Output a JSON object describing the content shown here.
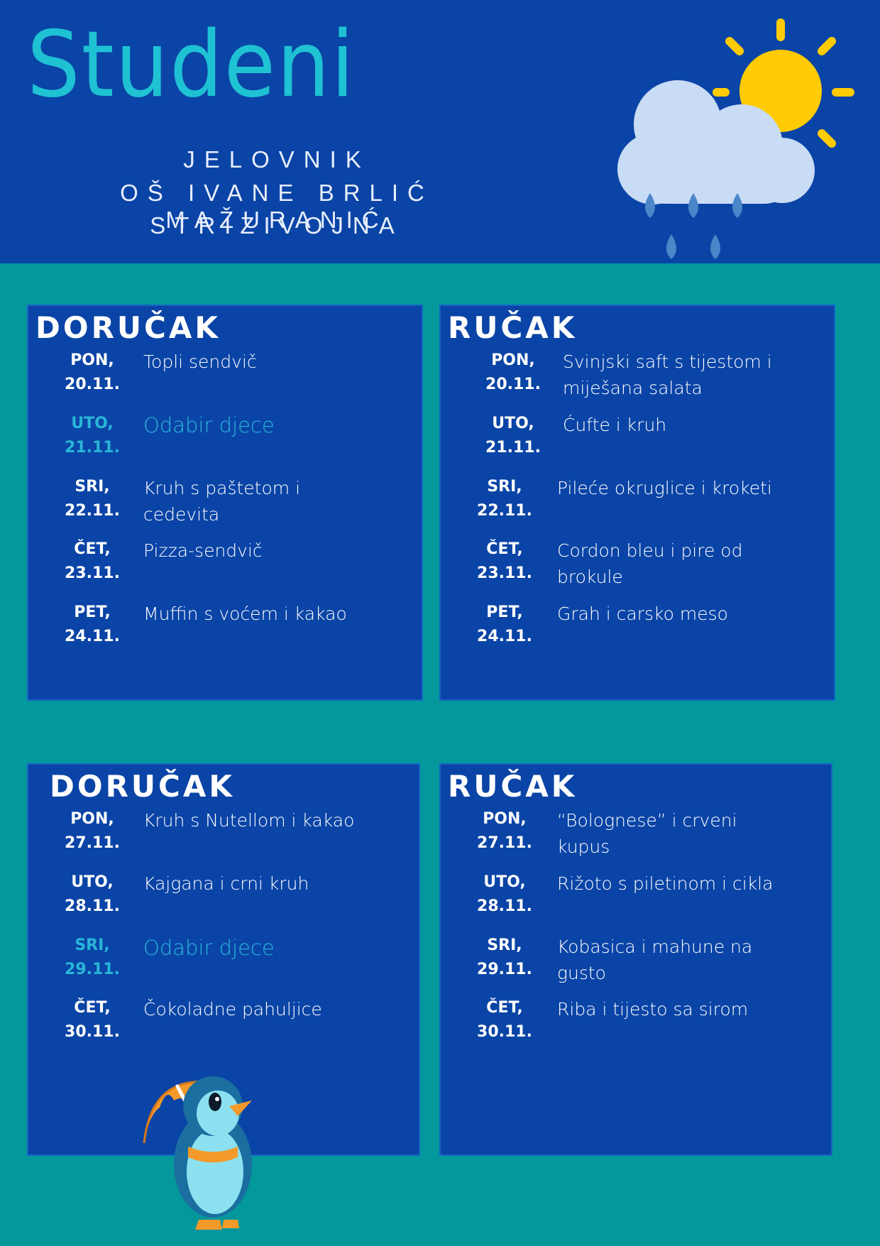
{
  "header": {
    "title": "Studeni",
    "line1": "JELOVNIK",
    "line2": "OŠ IVANE BRLIĆ MAŽURANIĆ",
    "line3": "STRIZIVOJNA"
  },
  "colors": {
    "background": "#04989c",
    "panel": "#0a44a6",
    "title": "#1fc2d3",
    "accent": "#29b6d8",
    "sun": "#ffcb05",
    "cloud": "#c9dcf5",
    "rain": "#4a86c8"
  },
  "icons": [
    "sun-cloud-rain-icon",
    "penguin-umbrella-icon"
  ],
  "panels": [
    {
      "title": "DORUČAK",
      "rows": [
        {
          "day": "PON,",
          "date": "20.11.",
          "meal": "Topli sendvič"
        },
        {
          "day": "UTO,",
          "date": "21.11.",
          "meal": "Odabir djece",
          "highlight": true
        },
        {
          "day": "SRI,",
          "date": "22.11.",
          "meal": "Kruh s paštetom i cedevita"
        },
        {
          "day": "ČET,",
          "date": "23.11.",
          "meal": "Pizza-sendvič"
        },
        {
          "day": "PET,",
          "date": "24.11.",
          "meal": "Muffin s voćem i kakao"
        }
      ]
    },
    {
      "title": "RUČAK",
      "rows": [
        {
          "day": "PON,",
          "date": "20.11.",
          "meal": "Svinjski saft s tijestom i miješana salata"
        },
        {
          "day": "UTO,",
          "date": "21.11.",
          "meal": "Ćufte i kruh"
        },
        {
          "day": "SRI,",
          "date": "22.11.",
          "meal": "Pileće okruglice i kroketi"
        },
        {
          "day": "ČET,",
          "date": "23.11.",
          "meal": "Cordon bleu i pire od brokule"
        },
        {
          "day": "PET,",
          "date": "24.11.",
          "meal": "Grah i carsko meso"
        }
      ]
    },
    {
      "title": "DORUČAK",
      "rows": [
        {
          "day": "PON,",
          "date": "27.11.",
          "meal": "Kruh s Nutellom i kakao"
        },
        {
          "day": "UTO,",
          "date": "28.11.",
          "meal": "Kajgana i crni kruh"
        },
        {
          "day": "SRI,",
          "date": "29.11.",
          "meal": "Odabir djece",
          "highlight": true
        },
        {
          "day": "ČET,",
          "date": "30.11.",
          "meal": "Čokoladne pahuljice"
        }
      ]
    },
    {
      "title": "RUČAK",
      "rows": [
        {
          "day": "PON,",
          "date": "27.11.",
          "meal": "“Bolognese” i crveni kupus"
        },
        {
          "day": "UTO,",
          "date": "28.11.",
          "meal": "Rižoto s piletinom i cikla"
        },
        {
          "day": "SRI,",
          "date": "29.11.",
          "meal": "Kobasica i mahune na gusto"
        },
        {
          "day": "ČET,",
          "date": "30.11.",
          "meal": "Riba i tijesto sa sirom"
        }
      ]
    }
  ]
}
